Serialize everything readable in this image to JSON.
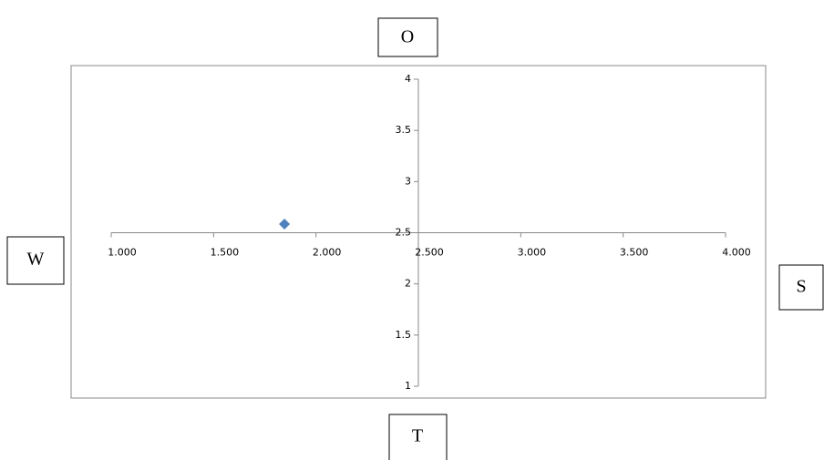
{
  "chart_data": {
    "type": "scatter",
    "x": [
      1.846
    ],
    "values": [
      2.585
    ],
    "color": "#4f81bd",
    "xlim": [
      1,
      4
    ],
    "xticks": [
      {
        "value": 1,
        "label": "1.000"
      },
      {
        "value": 1.5,
        "label": "1.500"
      },
      {
        "value": 2,
        "label": "2.000"
      },
      {
        "value": 2.5,
        "label": "2.500"
      },
      {
        "value": 3,
        "label": "3.000"
      },
      {
        "value": 3.5,
        "label": "3.500"
      },
      {
        "value": 4,
        "label": "4.000"
      }
    ],
    "ylim": [
      1,
      4
    ],
    "yticks": [
      1,
      1.5,
      2,
      2.5,
      3,
      3.5,
      4
    ],
    "crossing": {
      "x": 2.5,
      "y": 2.5
    },
    "quadrant_labels": {
      "top": "O",
      "bottom": "T",
      "left": "W",
      "right": "S"
    }
  }
}
